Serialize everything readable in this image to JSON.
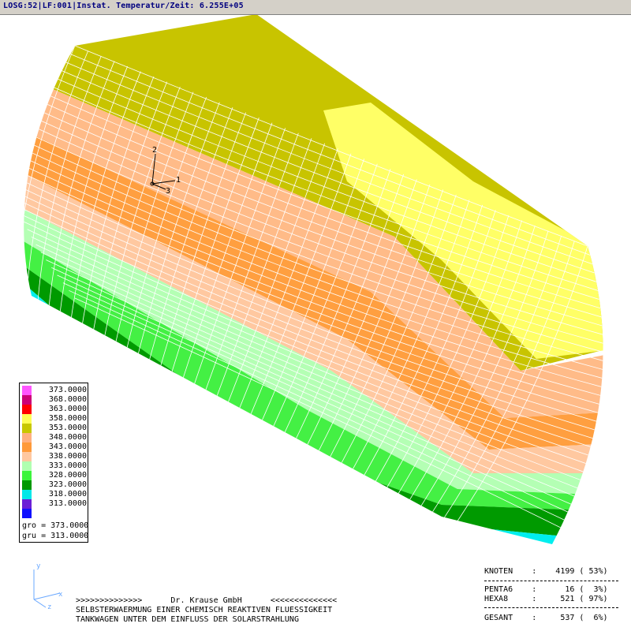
{
  "window": {
    "title": "LOSG:52|LF:001|Instat. Temperatur/Zeit: 6.255E+05"
  },
  "axes_triad": {
    "labels": [
      "2",
      "1",
      "3"
    ]
  },
  "corner_triad": {
    "labels": [
      "y",
      "x",
      "z"
    ]
  },
  "legend": {
    "entries": [
      {
        "value": "373.0000",
        "color": "#ff55ff"
      },
      {
        "value": "368.0000",
        "color": "#cc0077"
      },
      {
        "value": "363.0000",
        "color": "#ff0000"
      },
      {
        "value": "358.0000",
        "color": "#ffff55"
      },
      {
        "value": "353.0000",
        "color": "#c8c800"
      },
      {
        "value": "348.0000",
        "color": "#ffb080"
      },
      {
        "value": "343.0000",
        "color": "#ff9a3a"
      },
      {
        "value": "338.0000",
        "color": "#ffc8a0"
      },
      {
        "value": "333.0000",
        "color": "#b0ffb0"
      },
      {
        "value": "328.0000",
        "color": "#3cf53c"
      },
      {
        "value": "323.0000",
        "color": "#009900"
      },
      {
        "value": "318.0000",
        "color": "#00e8e8"
      },
      {
        "value": "313.0000",
        "color": "#6a1fd6"
      }
    ],
    "extra_swatch_color": "#1010ff",
    "gro": "gro = 373.0000",
    "gru": "gru = 313.0000"
  },
  "caption": {
    "line1": ">>>>>>>>>>>>>>      Dr. Krause GmbH      <<<<<<<<<<<<<<",
    "line2": "SELBSTERWAERMUNG EINER CHEMISCH REAKTIVEN FLUESSIGKEIT",
    "line3": "TANKWAGEN UNTER DEM EINFLUSS DER SOLARSTRAHLUNG"
  },
  "stats": {
    "knoten": "KNOTEN    :    4199 ( 53%)",
    "penta6": "PENTA6    :      16 (  3%)",
    "hexa8": "HEXA8     :     521 ( 97%)",
    "gesamt": "GESANT    :     537 (  6%)"
  },
  "colors": {
    "mesh": "#ffffff",
    "band_yellow": "#ffff66",
    "band_olive": "#c8c400",
    "band_peach": "#ffbb88",
    "band_orange": "#ff9f40",
    "band_lightgreen": "#b4ffb4",
    "band_green": "#44f044",
    "band_darkgreen": "#009a00",
    "band_cyan": "#00eeee",
    "band_purple": "#6a1fd6"
  }
}
